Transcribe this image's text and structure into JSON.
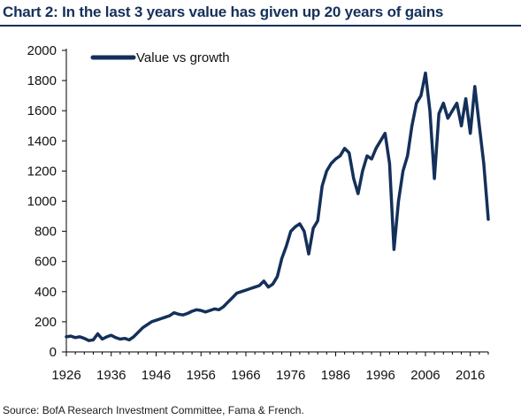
{
  "title": "Chart 2: In the last 3 years value has given up 20 years of gains",
  "source": "Source:  BofA Research Investment Committee, Fama & French.",
  "chart_data": {
    "type": "line",
    "title": "Chart 2: In the last 3 years value has given up 20 years of gains",
    "xlabel": "",
    "ylabel": "",
    "xlim": [
      1926,
      2020
    ],
    "ylim": [
      0,
      2000
    ],
    "x_ticks": [
      "1926",
      "1936",
      "1946",
      "1956",
      "1966",
      "1976",
      "1986",
      "1996",
      "2006",
      "2016"
    ],
    "y_ticks": [
      "0",
      "200",
      "400",
      "600",
      "800",
      "1000",
      "1200",
      "1400",
      "1600",
      "1800",
      "2000"
    ],
    "legend_position": "top-left",
    "grid": false,
    "line_color": "#14305a",
    "series": [
      {
        "name": "Value vs growth",
        "x": [
          1926,
          1927,
          1928,
          1929,
          1930,
          1931,
          1932,
          1933,
          1934,
          1935,
          1936,
          1937,
          1938,
          1939,
          1940,
          1941,
          1942,
          1943,
          1944,
          1945,
          1946,
          1947,
          1948,
          1949,
          1950,
          1951,
          1952,
          1953,
          1954,
          1955,
          1956,
          1957,
          1958,
          1959,
          1960,
          1961,
          1962,
          1963,
          1964,
          1965,
          1966,
          1967,
          1968,
          1969,
          1970,
          1971,
          1972,
          1973,
          1974,
          1975,
          1976,
          1977,
          1978,
          1979,
          1980,
          1981,
          1982,
          1983,
          1984,
          1985,
          1986,
          1987,
          1988,
          1989,
          1990,
          1991,
          1992,
          1993,
          1994,
          1995,
          1996,
          1997,
          1998,
          1999,
          2000,
          2001,
          2002,
          2003,
          2004,
          2005,
          2006,
          2007,
          2008,
          2009,
          2010,
          2011,
          2012,
          2013,
          2014,
          2015,
          2016,
          2017,
          2018,
          2019,
          2020
        ],
        "values": [
          100,
          105,
          95,
          100,
          90,
          75,
          80,
          120,
          85,
          100,
          110,
          95,
          85,
          90,
          80,
          100,
          130,
          160,
          180,
          200,
          210,
          220,
          230,
          240,
          260,
          250,
          245,
          255,
          270,
          280,
          275,
          265,
          275,
          285,
          280,
          300,
          330,
          360,
          390,
          400,
          410,
          420,
          430,
          440,
          470,
          430,
          450,
          500,
          620,
          700,
          800,
          830,
          850,
          800,
          650,
          820,
          870,
          1100,
          1200,
          1250,
          1280,
          1300,
          1350,
          1320,
          1150,
          1050,
          1200,
          1300,
          1280,
          1350,
          1400,
          1450,
          1250,
          680,
          1000,
          1200,
          1300,
          1500,
          1650,
          1700,
          1850,
          1600,
          1150,
          1580,
          1650,
          1550,
          1600,
          1650,
          1500,
          1680,
          1450,
          1760,
          1500,
          1250,
          880
        ]
      }
    ]
  }
}
